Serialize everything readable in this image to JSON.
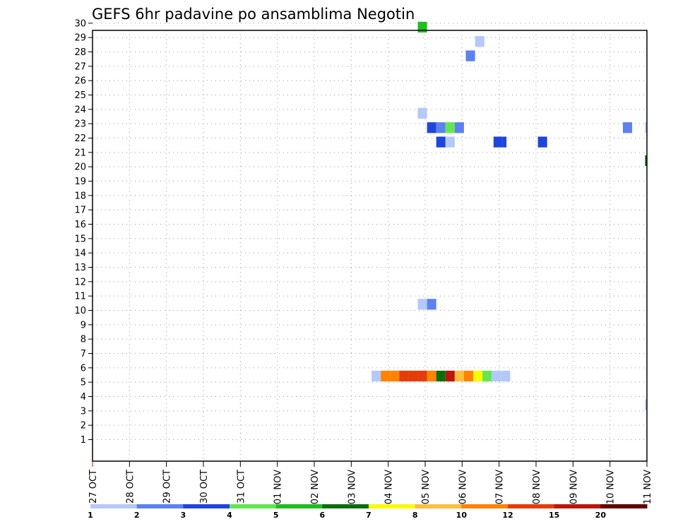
{
  "chart_data": {
    "type": "heatmap",
    "title": "GEFS 6hr padavine po ansamblima Negotin",
    "x_tick_labels": [
      "27 OCT",
      "28 OCT",
      "29 OCT",
      "30 OCT",
      "31 OCT",
      "01 NOV",
      "02 NOV",
      "03 NOV",
      "04 NOV",
      "05 NOV",
      "06 NOV",
      "07 NOV",
      "08 NOV",
      "09 NOV",
      "10 NOV",
      "11 NOV"
    ],
    "y_tick_labels": [
      "1",
      "2",
      "3",
      "4",
      "5",
      "6",
      "7",
      "8",
      "9",
      "10",
      "11",
      "12",
      "13",
      "14",
      "15",
      "16",
      "17",
      "18",
      "19",
      "20",
      "21",
      "22",
      "23",
      "24",
      "25",
      "26",
      "27",
      "28",
      "29",
      "30"
    ],
    "xlim_days": [
      0,
      15
    ],
    "ylim": [
      0,
      30
    ],
    "grid": true,
    "colorbar": {
      "levels": [
        "1",
        "2",
        "3",
        "4",
        "5",
        "6",
        "7",
        "8",
        "10",
        "12",
        "15",
        "20"
      ],
      "colors": [
        "#b4c8fa",
        "#5c82f0",
        "#1e46dc",
        "#64e650",
        "#1ebe1e",
        "#0a6e0a",
        "#fafa00",
        "#ffbe3c",
        "#ff8200",
        "#e63c0a",
        "#be140a",
        "#640000"
      ]
    },
    "cells": [
      {
        "x": 8.8,
        "y": 29.6,
        "w": 0.25,
        "color": "#1ebe1e"
      },
      {
        "x": 10.35,
        "y": 28.6,
        "w": 0.25,
        "color": "#b4c8fa"
      },
      {
        "x": 10.1,
        "y": 27.6,
        "w": 0.25,
        "color": "#5c82f0"
      },
      {
        "x": 8.8,
        "y": 23.6,
        "w": 0.25,
        "color": "#b4c8fa"
      },
      {
        "x": 9.05,
        "y": 22.6,
        "w": 0.25,
        "color": "#1e46dc"
      },
      {
        "x": 9.3,
        "y": 22.6,
        "w": 0.25,
        "color": "#5c82f0"
      },
      {
        "x": 9.55,
        "y": 22.6,
        "w": 0.25,
        "color": "#64e650"
      },
      {
        "x": 9.8,
        "y": 22.6,
        "w": 0.25,
        "color": "#5c82f0"
      },
      {
        "x": 14.35,
        "y": 22.6,
        "w": 0.25,
        "color": "#5c82f0"
      },
      {
        "x": 14.95,
        "y": 22.6,
        "w": 0.05,
        "color": "#b4c8fa"
      },
      {
        "x": 9.3,
        "y": 21.6,
        "w": 0.25,
        "color": "#1e46dc"
      },
      {
        "x": 9.55,
        "y": 21.6,
        "w": 0.25,
        "color": "#b4c8fa"
      },
      {
        "x": 10.85,
        "y": 21.6,
        "w": 0.25,
        "color": "#1e46dc"
      },
      {
        "x": 11.1,
        "y": 21.6,
        "w": 0.1,
        "color": "#1e46dc"
      },
      {
        "x": 12.05,
        "y": 21.6,
        "w": 0.25,
        "color": "#1e46dc"
      },
      {
        "x": 14.95,
        "y": 20.3,
        "w": 0.05,
        "color": "#0a6e0a"
      },
      {
        "x": 8.8,
        "y": 10.3,
        "w": 0.25,
        "color": "#b4c8fa"
      },
      {
        "x": 9.05,
        "y": 10.3,
        "w": 0.25,
        "color": "#5c82f0"
      },
      {
        "x": 7.55,
        "y": 5.3,
        "w": 0.25,
        "color": "#b4c8fa"
      },
      {
        "x": 7.8,
        "y": 5.3,
        "w": 0.25,
        "color": "#ff8200"
      },
      {
        "x": 8.05,
        "y": 5.3,
        "w": 0.25,
        "color": "#ff8200"
      },
      {
        "x": 8.3,
        "y": 5.3,
        "w": 0.25,
        "color": "#e63c0a"
      },
      {
        "x": 8.55,
        "y": 5.3,
        "w": 0.25,
        "color": "#e63c0a"
      },
      {
        "x": 8.8,
        "y": 5.3,
        "w": 0.25,
        "color": "#e63c0a"
      },
      {
        "x": 9.05,
        "y": 5.3,
        "w": 0.25,
        "color": "#ff8200"
      },
      {
        "x": 9.3,
        "y": 5.3,
        "w": 0.25,
        "color": "#0a6e0a"
      },
      {
        "x": 9.55,
        "y": 5.3,
        "w": 0.25,
        "color": "#be140a"
      },
      {
        "x": 9.8,
        "y": 5.3,
        "w": 0.25,
        "color": "#ffbe3c"
      },
      {
        "x": 10.05,
        "y": 5.3,
        "w": 0.25,
        "color": "#ff8200"
      },
      {
        "x": 10.3,
        "y": 5.3,
        "w": 0.25,
        "color": "#fafa00"
      },
      {
        "x": 10.55,
        "y": 5.3,
        "w": 0.25,
        "color": "#64e650"
      },
      {
        "x": 10.8,
        "y": 5.3,
        "w": 0.25,
        "color": "#b4c8fa"
      },
      {
        "x": 11.05,
        "y": 5.3,
        "w": 0.25,
        "color": "#b4c8fa"
      },
      {
        "x": 14.95,
        "y": 3.3,
        "w": 0.05,
        "color": "#b4c8fa"
      }
    ]
  }
}
